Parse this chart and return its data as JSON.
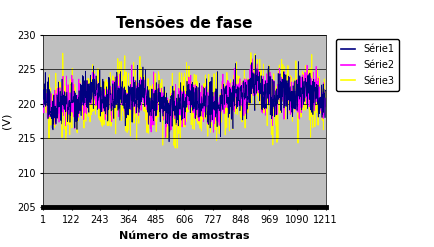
{
  "title": "Tensões de fase",
  "xlabel": "Número de amostras",
  "ylabel": "(V)",
  "ylim": [
    205,
    230
  ],
  "yticks": [
    205,
    210,
    215,
    220,
    225,
    230
  ],
  "xticks": [
    1,
    122,
    243,
    364,
    485,
    606,
    727,
    848,
    969,
    1090,
    1211
  ],
  "n_points": 1211,
  "series_labels": [
    "Série1",
    "Série2",
    "Série3"
  ],
  "series_colors": [
    "#000080",
    "#FF00FF",
    "#FFFF00"
  ],
  "series_linewidths": [
    0.5,
    0.6,
    0.7
  ],
  "mean_voltage": 220.5,
  "plot_bg_color": "#C0C0C0",
  "fig_bg_color": "#FFFFFF",
  "title_fontsize": 11,
  "axis_label_fontsize": 8,
  "tick_fontsize": 7,
  "legend_fontsize": 7,
  "seed": 42
}
